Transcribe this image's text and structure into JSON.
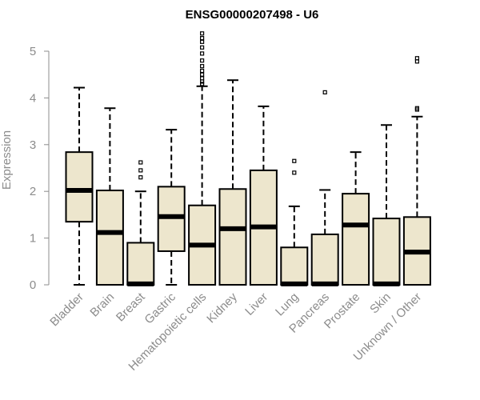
{
  "chart_data": {
    "type": "boxplot",
    "title": "ENSG00000207498 - U6",
    "xlabel": "",
    "ylabel": "Expression",
    "ylim": [
      0,
      5
    ],
    "yticks": [
      "0",
      "1",
      "2",
      "3",
      "4",
      "5"
    ],
    "grid": false,
    "colors": {
      "box_fill": "#ede6cd",
      "box_stroke": "#000000",
      "axis": "#8c8c8c",
      "outlier": "#000000"
    },
    "categories": [
      "Bladder",
      "Brain",
      "Breast",
      "Gastric",
      "Hematopoietic cells",
      "Kidney",
      "Liver",
      "Lung",
      "Pancreas",
      "Prostate",
      "Skin",
      "Unknown / Other"
    ],
    "boxes": [
      {
        "category": "Bladder",
        "whisker_low": 0,
        "q1": 1.35,
        "median": 2.02,
        "q3": 2.84,
        "whisker_high": 4.22,
        "outliers": []
      },
      {
        "category": "Brain",
        "whisker_low": 0,
        "q1": 0,
        "median": 1.12,
        "q3": 2.02,
        "whisker_high": 3.78,
        "outliers": []
      },
      {
        "category": "Breast",
        "whisker_low": 0,
        "q1": 0,
        "median": 0.02,
        "q3": 0.9,
        "whisker_high": 2.0,
        "outliers": [
          2.3,
          2.45,
          2.62
        ]
      },
      {
        "category": "Gastric",
        "whisker_low": 0,
        "q1": 0.72,
        "median": 1.46,
        "q3": 2.1,
        "whisker_high": 3.32,
        "outliers": []
      },
      {
        "category": "Hematopoietic cells",
        "whisker_low": 0,
        "q1": 0,
        "median": 0.85,
        "q3": 1.7,
        "whisker_high": 4.25,
        "outliers": [
          4.3,
          4.35,
          4.42,
          4.5,
          4.58,
          4.68,
          4.8,
          4.95,
          5.08,
          5.2,
          5.28,
          5.38
        ]
      },
      {
        "category": "Kidney",
        "whisker_low": 0,
        "q1": 0,
        "median": 1.2,
        "q3": 2.05,
        "whisker_high": 4.38,
        "outliers": []
      },
      {
        "category": "Liver",
        "whisker_low": 0,
        "q1": 0,
        "median": 1.24,
        "q3": 2.45,
        "whisker_high": 3.82,
        "outliers": []
      },
      {
        "category": "Lung",
        "whisker_low": 0,
        "q1": 0,
        "median": 0.02,
        "q3": 0.8,
        "whisker_high": 1.68,
        "outliers": [
          2.4,
          2.65
        ]
      },
      {
        "category": "Pancreas",
        "whisker_low": 0,
        "q1": 0,
        "median": 0.02,
        "q3": 1.08,
        "whisker_high": 2.03,
        "outliers": [
          4.12
        ]
      },
      {
        "category": "Prostate",
        "whisker_low": 0,
        "q1": 0,
        "median": 1.28,
        "q3": 1.95,
        "whisker_high": 2.84,
        "outliers": []
      },
      {
        "category": "Skin",
        "whisker_low": 0,
        "q1": 0,
        "median": 0.02,
        "q3": 1.42,
        "whisker_high": 3.42,
        "outliers": []
      },
      {
        "category": "Unknown / Other",
        "whisker_low": 0,
        "q1": 0,
        "median": 0.7,
        "q3": 1.45,
        "whisker_high": 3.6,
        "outliers": [
          3.75,
          3.78,
          4.78,
          4.85
        ]
      }
    ]
  }
}
